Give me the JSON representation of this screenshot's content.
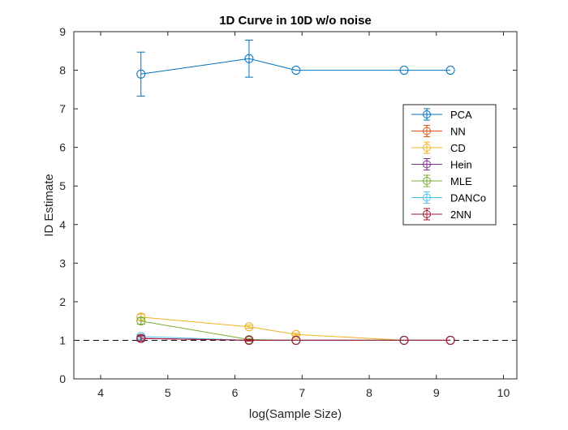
{
  "chart_data": {
    "type": "line",
    "title": "1D Curve in 10D w/o noise",
    "xlabel": "log(Sample Size)",
    "ylabel": "ID Estimate",
    "xlim": [
      3.6,
      10.2
    ],
    "ylim": [
      0,
      9
    ],
    "xticks": [
      4,
      5,
      6,
      7,
      8,
      9,
      10
    ],
    "yticks": [
      0,
      1,
      2,
      3,
      4,
      5,
      6,
      7,
      8,
      9
    ],
    "grid": false,
    "legend_position": "top-right",
    "reference_line": {
      "y": 1,
      "style": "dashed",
      "color": "#000000"
    },
    "series": [
      {
        "name": "PCA",
        "color": "#0072BD",
        "x": [
          4.6,
          6.21,
          6.91,
          8.52,
          9.21
        ],
        "y": [
          7.9,
          8.3,
          8.0,
          8.0,
          8.0
        ],
        "err": [
          0.57,
          0.48,
          0.0,
          0.0,
          0.0
        ]
      },
      {
        "name": "NN",
        "color": "#D95319",
        "x": [
          4.6,
          6.21,
          6.91,
          8.52,
          9.21
        ],
        "y": [
          1.05,
          1.0,
          1.0,
          1.0,
          1.0
        ],
        "err": [
          0.04,
          0.0,
          0.0,
          0.0,
          0.0
        ]
      },
      {
        "name": "CD",
        "color": "#EDB120",
        "x": [
          4.6,
          6.21,
          6.91,
          8.52,
          9.21
        ],
        "y": [
          1.6,
          1.35,
          1.15,
          1.0,
          1.0
        ],
        "err": [
          0.08,
          0.04,
          0.03,
          0.0,
          0.0
        ]
      },
      {
        "name": "Hein",
        "color": "#7E2F8E",
        "x": [
          4.6,
          6.21,
          6.91,
          8.52,
          9.21
        ],
        "y": [
          1.05,
          1.0,
          1.0,
          1.0,
          1.0
        ],
        "err": [
          0.05,
          0.0,
          0.0,
          0.0,
          0.0
        ]
      },
      {
        "name": "MLE",
        "color": "#77AC30",
        "x": [
          4.6,
          6.21,
          6.91,
          8.52,
          9.21
        ],
        "y": [
          1.5,
          1.02,
          1.0,
          1.0,
          1.0
        ],
        "err": [
          0.08,
          0.02,
          0.0,
          0.0,
          0.0
        ]
      },
      {
        "name": "DANCo",
        "color": "#4DBEEE",
        "x": [
          4.6,
          6.21,
          6.91,
          8.52,
          9.21
        ],
        "y": [
          1.1,
          1.0,
          1.0,
          1.0,
          1.0
        ],
        "err": [
          0.05,
          0.0,
          0.0,
          0.0,
          0.0
        ]
      },
      {
        "name": "2NN",
        "color": "#A2142F",
        "x": [
          4.6,
          6.21,
          6.91,
          8.52,
          9.21
        ],
        "y": [
          1.05,
          1.0,
          1.0,
          1.0,
          1.0
        ],
        "err": [
          0.07,
          0.02,
          0.0,
          0.0,
          0.0
        ]
      }
    ]
  }
}
